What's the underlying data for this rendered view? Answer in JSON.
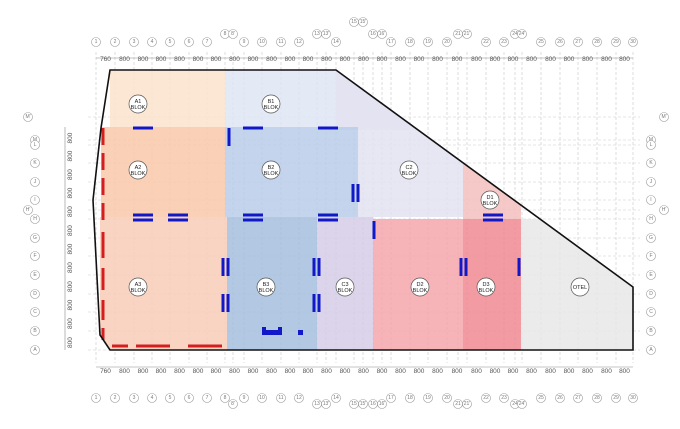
{
  "colors": {
    "background": "#ffffff",
    "outline": "#111111",
    "grid": "#c9c9c9",
    "red_wall": "#d31f1f",
    "blue_wall": "#1018c8"
  },
  "grid_columns": {
    "top_labels": [
      "1",
      "2",
      "3",
      "4",
      "5",
      "6",
      "7",
      "8",
      "8'",
      "9",
      "10",
      "11",
      "12",
      "13",
      "13'",
      "14",
      "15",
      "15'",
      "16",
      "16'",
      "17",
      "18",
      "19",
      "20",
      "21",
      "21'",
      "22",
      "23",
      "24",
      "24'",
      "25",
      "26",
      "27",
      "28",
      "29",
      "30"
    ],
    "bottom_labels": [
      "1",
      "2",
      "3",
      "4",
      "5",
      "6",
      "7",
      "8",
      "8'",
      "9",
      "10",
      "11",
      "12",
      "13",
      "13'",
      "14",
      "15",
      "15'",
      "16",
      "16'",
      "17",
      "18",
      "19",
      "20",
      "21",
      "21'",
      "22",
      "23",
      "24",
      "24'",
      "25",
      "26",
      "27",
      "28",
      "29",
      "30"
    ],
    "spans": [
      "760",
      "800",
      "800",
      "800",
      "800",
      "800",
      "800",
      "800",
      "800",
      "800",
      "800",
      "800",
      "800",
      "800",
      "800",
      "800",
      "800",
      "800",
      "800",
      "800",
      "800",
      "800",
      "800",
      "800",
      "800",
      "800",
      "800",
      "800",
      "800"
    ]
  },
  "grid_rows": {
    "labels": [
      "M'",
      "M",
      "L",
      "K",
      "J",
      "I",
      "H'",
      "H",
      "G",
      "F",
      "E",
      "D",
      "C",
      "B",
      "A"
    ],
    "spans": [
      "800",
      "800",
      "800",
      "800",
      "800",
      "800",
      "800",
      "800",
      "800",
      "800",
      "800",
      "800",
      "760"
    ]
  },
  "zones": [
    {
      "id": "A1",
      "line1": "A1",
      "line2": "BLOK",
      "color": "#fce3cc"
    },
    {
      "id": "A2",
      "line1": "A2",
      "line2": "BLOK",
      "color": "#f9c8aa"
    },
    {
      "id": "A3",
      "line1": "A3",
      "line2": "BLOK",
      "color": "#f9cdb8"
    },
    {
      "id": "B1",
      "line1": "B1",
      "line2": "BLOK",
      "color": "#dfe5f5"
    },
    {
      "id": "B2",
      "line1": "B2",
      "line2": "BLOK",
      "color": "#b8cde9"
    },
    {
      "id": "B3",
      "line1": "B3",
      "line2": "BLOK",
      "color": "#a6bedd"
    },
    {
      "id": "C2",
      "line1": "C2",
      "line2": "BLOK",
      "color": "#e3e3f1"
    },
    {
      "id": "C3",
      "line1": "C3",
      "line2": "BLOK",
      "color": "#d5cce6"
    },
    {
      "id": "D1",
      "line1": "D1",
      "line2": "BLOK",
      "color": "#f5c0c0"
    },
    {
      "id": "D2",
      "line1": "D2",
      "line2": "BLOK",
      "color": "#f5a6ac"
    },
    {
      "id": "D3",
      "line1": "D3",
      "line2": "BLOK",
      "color": "#f08a92"
    },
    {
      "id": "OTEL",
      "line1": "OTEL",
      "line2": "",
      "color": "#e8e8e8"
    }
  ]
}
